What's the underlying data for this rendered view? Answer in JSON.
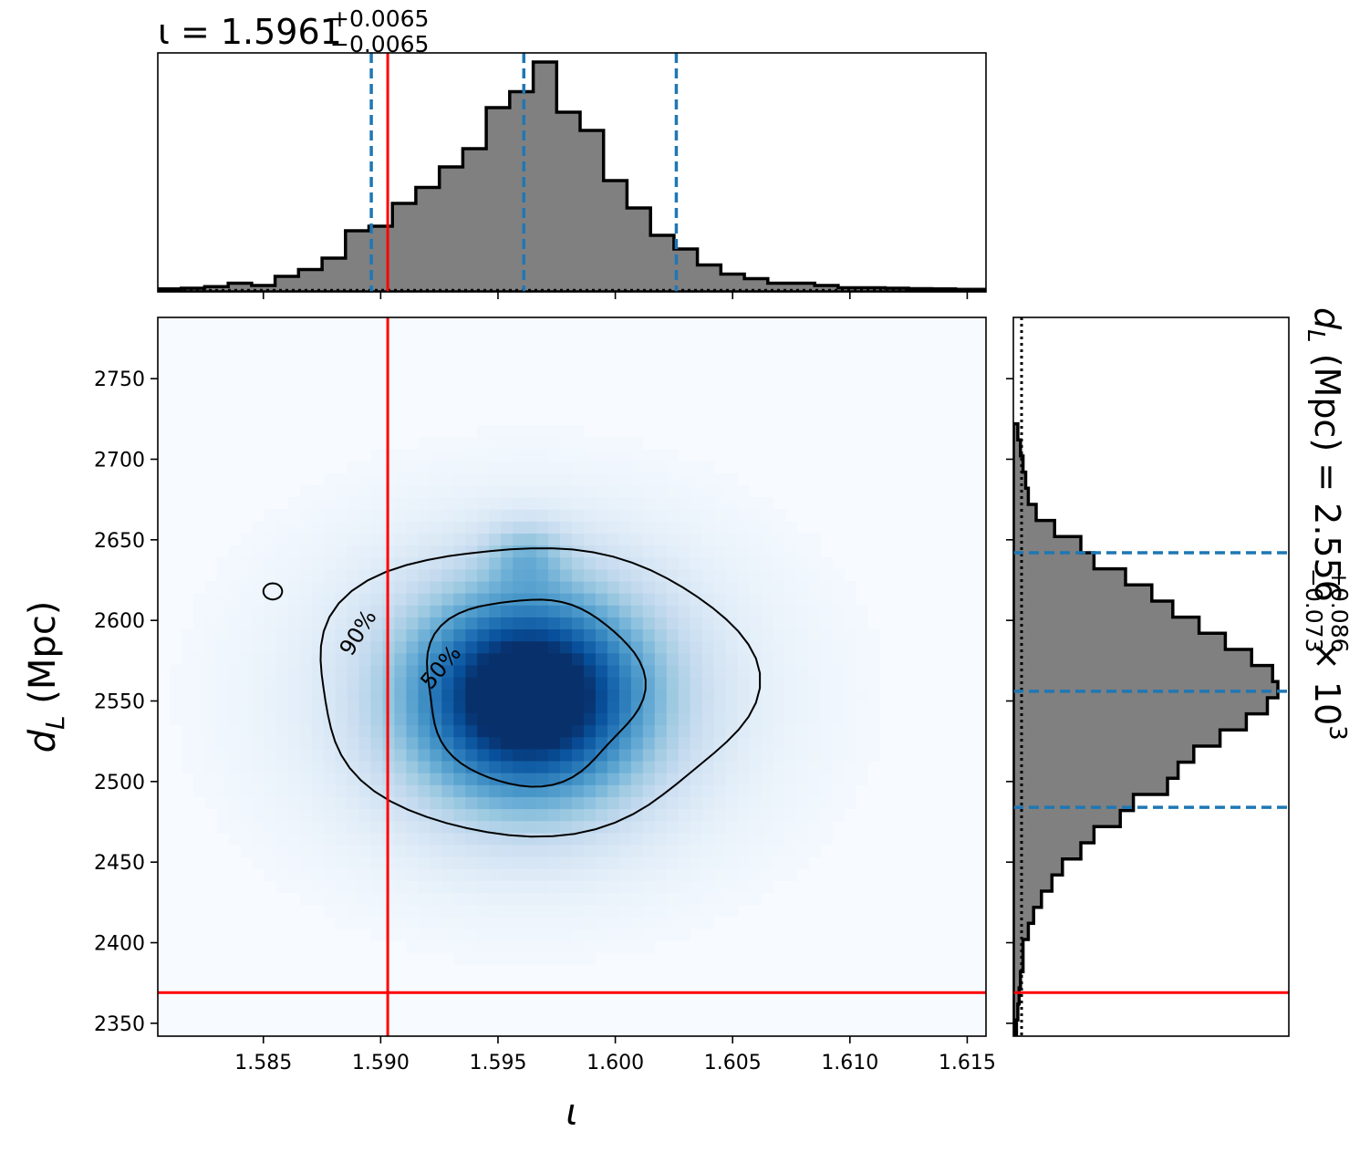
{
  "titles": {
    "iota_prefix": "ι = 1.5961",
    "iota_upper": "+0.0065",
    "iota_lower": "−0.0065",
    "dl_prefix": "d",
    "dl_sub": "L",
    "dl_mid": " (Mpc) = 2.556",
    "dl_upper": "+0.086",
    "dl_lower": "−0.073",
    "dl_suffix": " × 10",
    "dl_exp": "3"
  },
  "axes": {
    "xlabel": "ι",
    "ylabel_main": "d",
    "ylabel_sub": "L",
    "ylabel_tail": " (Mpc)"
  },
  "colors": {
    "hist_fill": "#808080",
    "hist_edge": "#000000",
    "quantile": "#1f77b4",
    "truth": "#ff0000",
    "density_cmap": "Blues"
  },
  "chart_data": {
    "type": "corner",
    "x_param": "ι",
    "y_param": "d_L (Mpc)",
    "xlim": [
      1.5805,
      1.6158
    ],
    "ylim": [
      2342,
      2788
    ],
    "x_ticks": [
      1.585,
      1.59,
      1.595,
      1.6,
      1.605,
      1.61,
      1.615
    ],
    "x_tick_labels": [
      "1.585",
      "1.590",
      "1.595",
      "1.600",
      "1.605",
      "1.610",
      "1.615"
    ],
    "y_ticks": [
      2350,
      2400,
      2450,
      2500,
      2550,
      2600,
      2650,
      2700,
      2750
    ],
    "y_tick_labels": [
      "2350",
      "2400",
      "2450",
      "2500",
      "2550",
      "2600",
      "2650",
      "2700",
      "2750"
    ],
    "truth": {
      "iota": 1.5903,
      "d_L": 2369
    },
    "iota_summary": {
      "median": 1.5961,
      "plus": 0.0065,
      "minus": 0.0065
    },
    "iota_quantile_lines": [
      1.5896,
      1.5961,
      1.6026
    ],
    "dL_summary": {
      "median": 2556,
      "plus": 86,
      "minus": 73
    },
    "dL_quantile_lines": [
      2484,
      2556,
      2642
    ],
    "peak": {
      "iota": 1.5963,
      "d_L": 2553
    },
    "contour_levels": [
      "50%",
      "90%"
    ],
    "iota_histogram": {
      "bin_edges": [
        1.5805,
        1.5815,
        1.5825,
        1.5835,
        1.5845,
        1.5855,
        1.5865,
        1.5875,
        1.5885,
        1.5895,
        1.5905,
        1.5915,
        1.5925,
        1.5935,
        1.5945,
        1.5955,
        1.5965,
        1.5975,
        1.5985,
        1.5995,
        1.6005,
        1.6015,
        1.6025,
        1.6035,
        1.6045,
        1.6055,
        1.6065,
        1.6075,
        1.6085,
        1.6095,
        1.6105,
        1.6115,
        1.6125,
        1.6135,
        1.6145,
        1.6158
      ],
      "values": [
        0.005,
        0.008,
        0.015,
        0.03,
        0.02,
        0.06,
        0.09,
        0.14,
        0.26,
        0.28,
        0.38,
        0.45,
        0.54,
        0.62,
        0.8,
        0.87,
        1.0,
        0.78,
        0.7,
        0.48,
        0.36,
        0.24,
        0.18,
        0.11,
        0.07,
        0.05,
        0.03,
        0.03,
        0.02,
        0.01,
        0.01,
        0.008,
        0.006,
        0.005,
        0.003
      ]
    },
    "dL_histogram": {
      "bin_edges": [
        2342,
        2352,
        2362,
        2372,
        2382,
        2392,
        2402,
        2412,
        2422,
        2432,
        2442,
        2452,
        2462,
        2472,
        2482,
        2492,
        2502,
        2512,
        2522,
        2532,
        2542,
        2552,
        2562,
        2572,
        2582,
        2592,
        2602,
        2612,
        2622,
        2632,
        2642,
        2652,
        2662,
        2672,
        2682,
        2692,
        2702,
        2712,
        2722
      ],
      "values": [
        0.005,
        0.01,
        0.015,
        0.02,
        0.03,
        0.03,
        0.05,
        0.07,
        0.1,
        0.14,
        0.18,
        0.25,
        0.3,
        0.4,
        0.45,
        0.58,
        0.62,
        0.68,
        0.78,
        0.88,
        0.96,
        1.0,
        0.98,
        0.9,
        0.8,
        0.7,
        0.6,
        0.52,
        0.42,
        0.3,
        0.25,
        0.15,
        0.08,
        0.05,
        0.04,
        0.03,
        0.02,
        0.01
      ]
    }
  }
}
